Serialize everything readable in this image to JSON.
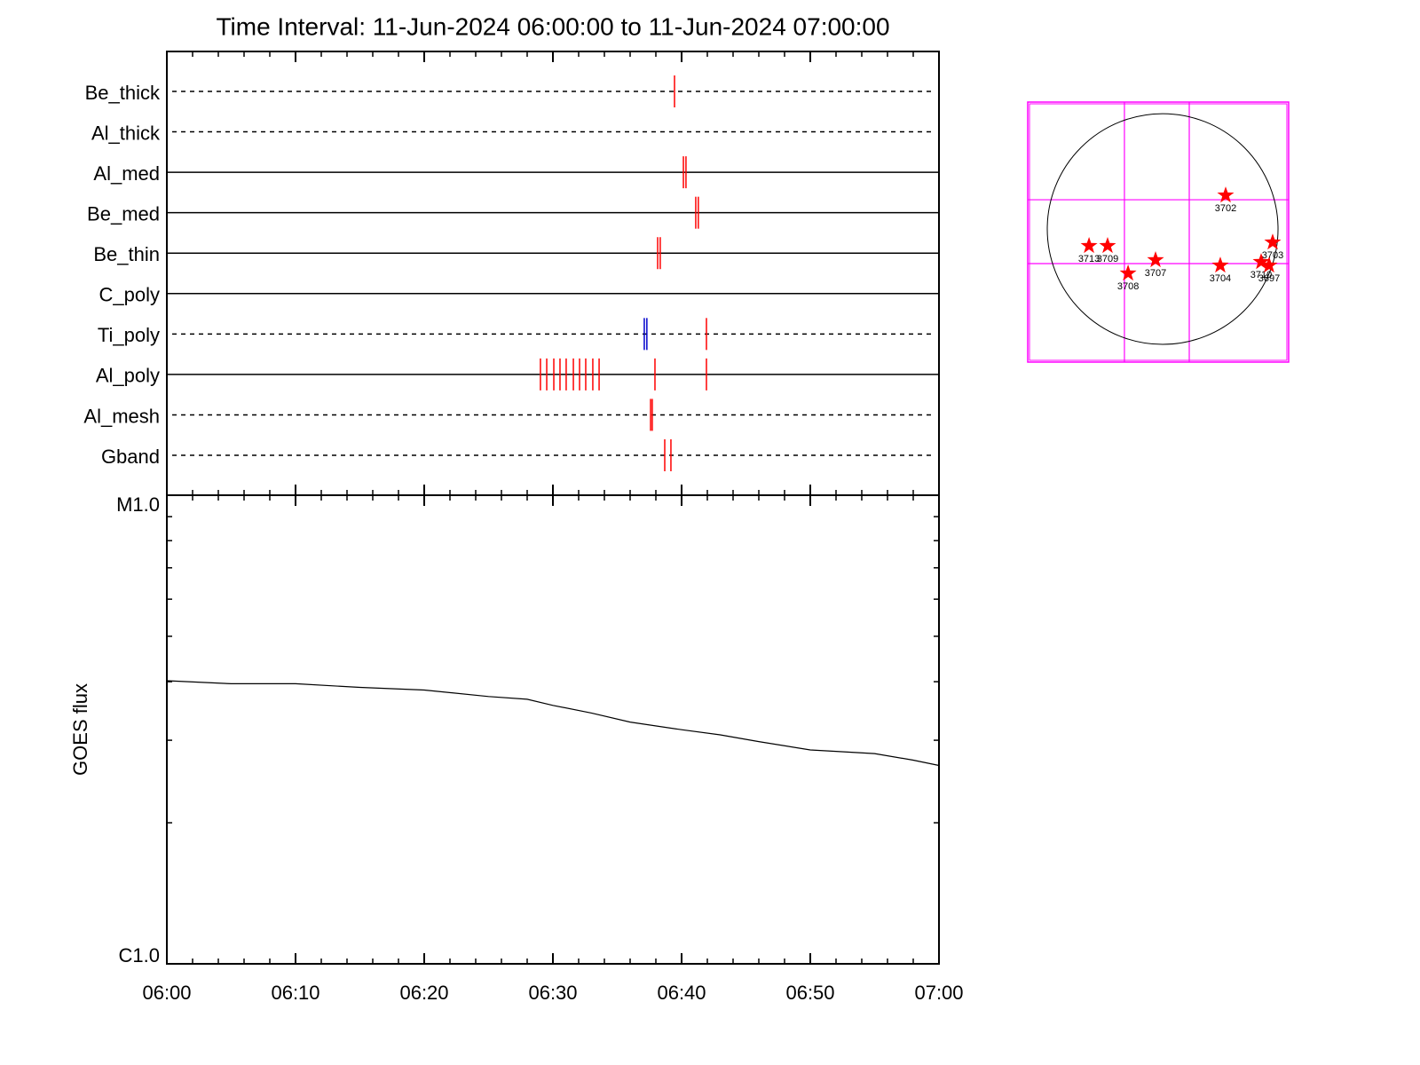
{
  "chart_data": [
    {
      "type": "timeline",
      "title": "Time Interval: 11-Jun-2024 06:00:00 to 11-Jun-2024 07:00:00",
      "xlim": [
        0,
        60
      ],
      "xticks": [
        0,
        10,
        20,
        30,
        40,
        50,
        60
      ],
      "xminor": [
        2,
        4,
        6,
        8,
        12,
        14,
        16,
        18,
        22,
        24,
        26,
        28,
        32,
        34,
        36,
        38,
        42,
        44,
        46,
        48,
        52,
        54,
        56,
        58
      ],
      "series": [
        {
          "name": "Be_thick",
          "dashed": true,
          "times": [
            39.45
          ],
          "colors": [
            "#ff0000"
          ]
        },
        {
          "name": "Al_thick",
          "dashed": true,
          "times": [],
          "colors": []
        },
        {
          "name": "Al_med",
          "dashed": false,
          "times": [
            40.14,
            40.34
          ],
          "colors": [
            "#ff0000",
            "#ff0000"
          ]
        },
        {
          "name": "Be_med",
          "dashed": false,
          "times": [
            41.1,
            41.3
          ],
          "colors": [
            "#ff0000",
            "#ff0000"
          ]
        },
        {
          "name": "Be_thin",
          "dashed": false,
          "times": [
            38.14,
            38.34
          ],
          "colors": [
            "#ff0000",
            "#ff0000"
          ]
        },
        {
          "name": "C_poly",
          "dashed": false,
          "times": [],
          "colors": []
        },
        {
          "name": "Ti_poly",
          "dashed": true,
          "times": [
            37.1,
            37.3,
            41.93
          ],
          "colors": [
            "#0000cc",
            "#0000cc",
            "#ff0000"
          ]
        },
        {
          "name": "Al_poly",
          "dashed": false,
          "times": [
            29.03,
            29.52,
            30.07,
            30.55,
            31.03,
            31.59,
            32.07,
            32.55,
            33.1,
            33.59,
            37.93,
            41.93
          ],
          "colors": [
            "#ff0000",
            "#ff0000",
            "#ff0000",
            "#ff0000",
            "#ff0000",
            "#ff0000",
            "#ff0000",
            "#ff0000",
            "#ff0000",
            "#ff0000",
            "#ff0000",
            "#ff0000"
          ]
        },
        {
          "name": "Al_mesh",
          "dashed": true,
          "times": [
            37.59,
            37.72
          ],
          "colors": [
            "#ff0000",
            "#ff0000"
          ]
        },
        {
          "name": "Gband",
          "dashed": true,
          "times": [
            38.69,
            39.17
          ],
          "colors": [
            "#ff0000",
            "#ff0000"
          ]
        }
      ]
    },
    {
      "type": "line",
      "ylabel": "GOES flux",
      "log_y": true,
      "color": "#000000",
      "x": [
        0,
        5,
        10,
        15,
        20,
        25,
        28,
        30,
        33,
        36,
        40,
        43,
        46,
        50,
        52,
        55,
        58,
        60
      ],
      "values": [
        4.02e-06,
        3.96e-06,
        3.96e-06,
        3.89e-06,
        3.84e-06,
        3.72e-06,
        3.67e-06,
        3.56e-06,
        3.43e-06,
        3.28e-06,
        3.16e-06,
        3.08e-06,
        2.98e-06,
        2.86e-06,
        2.84e-06,
        2.81e-06,
        2.72e-06,
        2.65e-06
      ],
      "xlim": [
        0,
        60
      ],
      "xticks": [
        {
          "value": 0,
          "label": "06:00"
        },
        {
          "value": 10,
          "label": "06:10"
        },
        {
          "value": 20,
          "label": "06:20"
        },
        {
          "value": 30,
          "label": "06:30"
        },
        {
          "value": 40,
          "label": "06:40"
        },
        {
          "value": 50,
          "label": "06:50"
        },
        {
          "value": 60,
          "label": "07:00"
        }
      ],
      "xminor": [
        2,
        4,
        6,
        8,
        12,
        14,
        16,
        18,
        22,
        24,
        26,
        28,
        32,
        34,
        36,
        38,
        42,
        44,
        46,
        48,
        52,
        54,
        56,
        58
      ],
      "ylim": [
        1e-06,
        1e-05
      ],
      "yticks": [
        {
          "value": 1e-05,
          "label": "M1.0"
        },
        {
          "value": 1e-06,
          "label": "C1.0"
        }
      ],
      "yminor": [
        2e-06,
        3e-06,
        4e-06,
        5e-06,
        6e-06,
        7e-06,
        8e-06,
        9e-06
      ]
    },
    {
      "type": "scatter",
      "color": "#ff0000",
      "grid_color": "#ff00ff",
      "xlim": [
        -1105,
        1032
      ],
      "ylim": [
        -1090,
        1040
      ],
      "radius": 945,
      "xgrid": [
        -313,
        218
      ],
      "ygrid": [
        240,
        -283
      ],
      "names": [
        "3702",
        "3713",
        "3709",
        "3708",
        "3707",
        "3704",
        "3703",
        "3710",
        "3697"
      ],
      "x": [
        516,
        -603,
        -451,
        -283,
        -58,
        472,
        901,
        807,
        872
      ],
      "values": [
        276,
        -138,
        -138,
        -363,
        -254,
        -298,
        -109,
        -269,
        -298
      ]
    }
  ]
}
